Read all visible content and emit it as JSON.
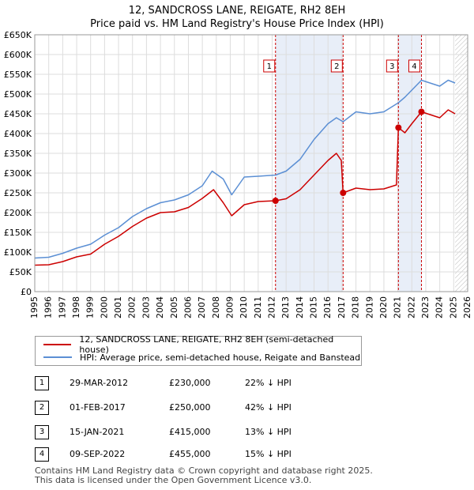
{
  "title": "12, SANDCROSS LANE, REIGATE, RH2 8EH",
  "subtitle": "Price paid vs. HM Land Registry's House Price Index (HPI)",
  "chart_data": {
    "type": "line",
    "title": "12, SANDCROSS LANE, REIGATE, RH2 8EH",
    "subtitle": "Price paid vs. HM Land Registry's House Price Index (HPI)",
    "xlim": [
      1995,
      2026
    ],
    "ylim": [
      0,
      650000
    ],
    "x_ticks": [
      1995,
      1996,
      1997,
      1998,
      1999,
      2000,
      2001,
      2002,
      2003,
      2004,
      2005,
      2006,
      2007,
      2008,
      2009,
      2010,
      2011,
      2012,
      2013,
      2014,
      2015,
      2016,
      2017,
      2018,
      2019,
      2020,
      2021,
      2022,
      2023,
      2024,
      2025,
      2026
    ],
    "y_ticks": [
      0,
      50000,
      100000,
      150000,
      200000,
      250000,
      300000,
      350000,
      400000,
      450000,
      500000,
      550000,
      600000,
      650000
    ],
    "y_tick_labels": [
      "£0",
      "£50K",
      "£100K",
      "£150K",
      "£200K",
      "£250K",
      "£300K",
      "£350K",
      "£400K",
      "£450K",
      "£500K",
      "£550K",
      "£600K",
      "£650K"
    ],
    "grid": true,
    "hatched_future_from": 2025.1,
    "series": [
      {
        "name": "12, SANDCROSS LANE, REIGATE, RH2 8EH (semi-detached house)",
        "color": "#cc0000",
        "points": [
          [
            1995.0,
            67000
          ],
          [
            1996.0,
            68000
          ],
          [
            1997.0,
            76000
          ],
          [
            1998.0,
            88000
          ],
          [
            1999.0,
            95000
          ],
          [
            2000.0,
            120000
          ],
          [
            2001.0,
            140000
          ],
          [
            2002.0,
            165000
          ],
          [
            2003.0,
            186000
          ],
          [
            2004.0,
            200000
          ],
          [
            2005.0,
            202000
          ],
          [
            2006.0,
            213000
          ],
          [
            2007.0,
            236000
          ],
          [
            2007.8,
            258000
          ],
          [
            2008.5,
            225000
          ],
          [
            2009.1,
            192000
          ],
          [
            2010.0,
            220000
          ],
          [
            2011.0,
            228000
          ],
          [
            2012.24,
            230000
          ],
          [
            2013.0,
            235000
          ],
          [
            2014.0,
            258000
          ],
          [
            2015.0,
            295000
          ],
          [
            2016.0,
            332000
          ],
          [
            2016.6,
            350000
          ],
          [
            2016.95,
            332000
          ],
          [
            2017.08,
            250000
          ],
          [
            2018.0,
            262000
          ],
          [
            2019.0,
            258000
          ],
          [
            2020.0,
            260000
          ],
          [
            2020.9,
            270000
          ],
          [
            2021.04,
            415000
          ],
          [
            2021.5,
            402000
          ],
          [
            2022.0,
            425000
          ],
          [
            2022.69,
            455000
          ],
          [
            2023.3,
            448000
          ],
          [
            2024.0,
            440000
          ],
          [
            2024.6,
            460000
          ],
          [
            2025.1,
            450000
          ]
        ]
      },
      {
        "name": "HPI: Average price, semi-detached house, Reigate and Banstead",
        "color": "#5b8fd4",
        "points": [
          [
            1995.0,
            85000
          ],
          [
            1996.0,
            87000
          ],
          [
            1997.0,
            97000
          ],
          [
            1998.0,
            110000
          ],
          [
            1999.0,
            120000
          ],
          [
            2000.0,
            143000
          ],
          [
            2001.0,
            162000
          ],
          [
            2002.0,
            190000
          ],
          [
            2003.0,
            210000
          ],
          [
            2004.0,
            225000
          ],
          [
            2005.0,
            232000
          ],
          [
            2006.0,
            245000
          ],
          [
            2007.0,
            268000
          ],
          [
            2007.7,
            305000
          ],
          [
            2008.5,
            285000
          ],
          [
            2009.1,
            245000
          ],
          [
            2010.0,
            290000
          ],
          [
            2011.0,
            292000
          ],
          [
            2012.24,
            295000
          ],
          [
            2013.0,
            305000
          ],
          [
            2014.0,
            335000
          ],
          [
            2015.0,
            385000
          ],
          [
            2016.0,
            425000
          ],
          [
            2016.6,
            440000
          ],
          [
            2017.08,
            430000
          ],
          [
            2018.0,
            455000
          ],
          [
            2019.0,
            450000
          ],
          [
            2020.0,
            455000
          ],
          [
            2021.04,
            478000
          ],
          [
            2021.5,
            492000
          ],
          [
            2022.0,
            510000
          ],
          [
            2022.69,
            535000
          ],
          [
            2023.3,
            528000
          ],
          [
            2024.0,
            520000
          ],
          [
            2024.6,
            535000
          ],
          [
            2025.1,
            528000
          ]
        ]
      }
    ],
    "sales": [
      {
        "num": "1",
        "x": 2012.24,
        "price": 230000,
        "date": "29-MAR-2012",
        "price_label": "£230,000",
        "hpi": "22% ↓ HPI"
      },
      {
        "num": "2",
        "x": 2017.08,
        "price": 250000,
        "date": "01-FEB-2017",
        "price_label": "£250,000",
        "hpi": "42% ↓ HPI"
      },
      {
        "num": "3",
        "x": 2021.04,
        "price": 415000,
        "date": "15-JAN-2021",
        "price_label": "£415,000",
        "hpi": "13% ↓ HPI"
      },
      {
        "num": "4",
        "x": 2022.69,
        "price": 455000,
        "date": "09-SEP-2022",
        "price_label": "£455,000",
        "hpi": "15% ↓ HPI"
      }
    ]
  },
  "legend": {
    "property_label": "12, SANDCROSS LANE, REIGATE, RH2 8EH (semi-detached house)",
    "hpi_label": "HPI: Average price, semi-detached house, Reigate and Banstead",
    "property_color": "#cc0000",
    "hpi_color": "#5b8fd4"
  },
  "footer": {
    "line1": "Contains HM Land Registry data © Crown copyright and database right 2025.",
    "line2": "This data is licensed under the Open Government Licence v3.0."
  }
}
